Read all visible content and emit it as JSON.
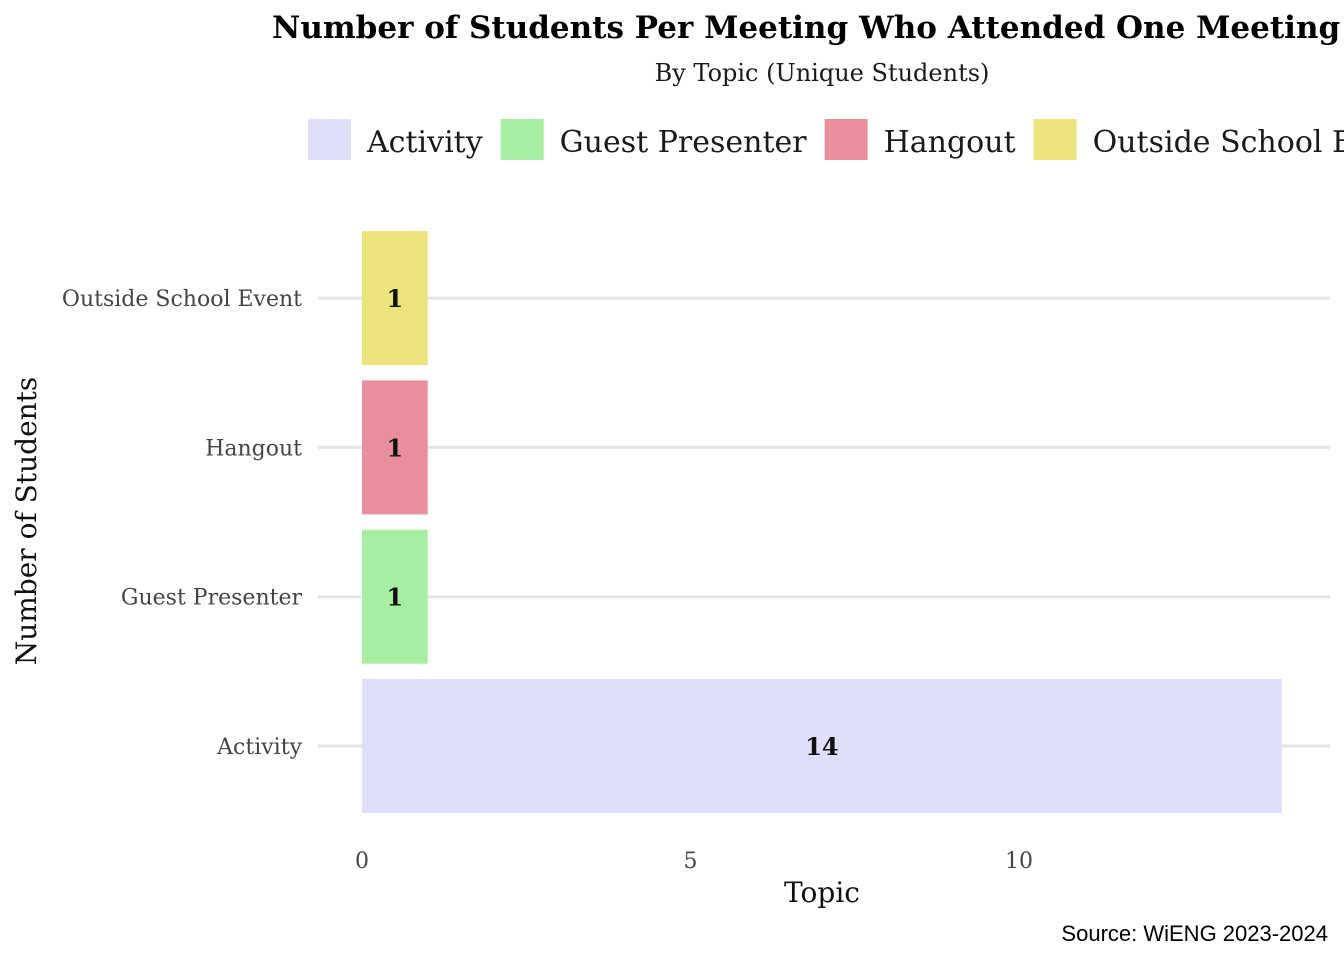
{
  "chart_data": {
    "type": "bar",
    "orientation": "horizontal",
    "title": "Number of Students Per Meeting Who Attended One Meeting",
    "subtitle": "By Topic (Unique Students)",
    "xlabel": "Topic",
    "ylabel": "Number of Students",
    "caption": "Source: WiENG 2023-2024",
    "categories": [
      "Activity",
      "Guest Presenter",
      "Hangout",
      "Outside School Event"
    ],
    "values": [
      14,
      1,
      1,
      1
    ],
    "value_labels": [
      "14",
      "1",
      "1",
      "1"
    ],
    "colors": [
      "#dfdff9",
      "#a8eea2",
      "#e98f9c",
      "#ebe37c"
    ],
    "xlim": [
      0,
      14.7
    ],
    "x_ticks": [
      0,
      5,
      10
    ],
    "x_tick_labels": [
      "0",
      "5",
      "10"
    ],
    "grid": "horizontal major lines",
    "legend": {
      "position": "top",
      "entries": [
        "Activity",
        "Guest Presenter",
        "Hangout",
        "Outside School Event"
      ]
    }
  }
}
